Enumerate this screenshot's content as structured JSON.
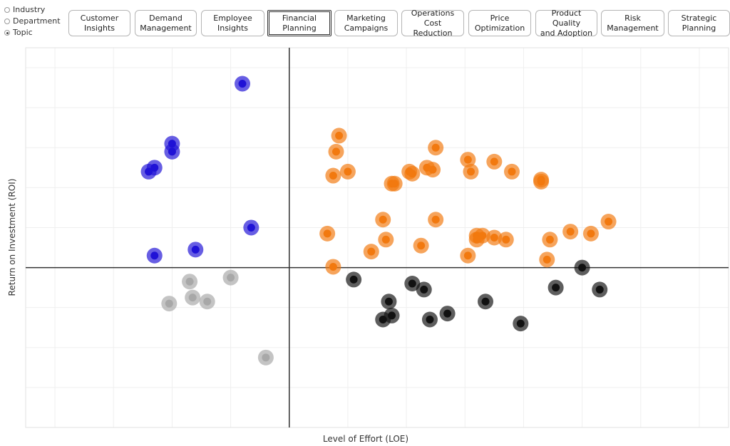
{
  "filter": {
    "options": [
      "Industry",
      "Department",
      "Topic"
    ],
    "selected": "Topic"
  },
  "topics": [
    "Customer\nInsights",
    "Demand\nManagement",
    "Employee\nInsights",
    "Financial\nPlanning",
    "Marketing\nCampaigns",
    "Operations Cost\nReduction",
    "Price\nOptimization",
    "Product Quality\nand Adoption",
    "Risk\nManagement",
    "Strategic\nPlanning"
  ],
  "active_topic": "Financial\nPlanning",
  "colors": {
    "high_roi_low_effort": "#1f12d6",
    "high_roi_high_effort": "#f2790f",
    "low_roi_low_effort": "#a8a8a8",
    "low_roi_high_effort": "#111111"
  },
  "chart_data": {
    "type": "scatter",
    "xlabel": "Level of Effort (LOE)",
    "ylabel": "Return on Investment (ROI)",
    "xlim": [
      -4.5,
      7.5
    ],
    "ylim": [
      -4,
      5.5
    ],
    "grid": true,
    "quadrant_lines": {
      "x": 0,
      "y": 0
    },
    "series": [
      {
        "quadrant": "high_roi_low_effort",
        "points": [
          [
            -0.8,
            4.6
          ],
          [
            -2.0,
            3.1
          ],
          [
            -2.0,
            2.9
          ],
          [
            -2.3,
            2.5
          ],
          [
            -2.4,
            2.4
          ],
          [
            -0.65,
            1.0
          ],
          [
            -1.6,
            0.45
          ],
          [
            -2.3,
            0.3
          ]
        ]
      },
      {
        "quadrant": "high_roi_high_effort",
        "points": [
          [
            0.85,
            3.3
          ],
          [
            0.8,
            2.9
          ],
          [
            1.0,
            2.4
          ],
          [
            0.75,
            2.3
          ],
          [
            1.75,
            2.1
          ],
          [
            1.8,
            2.1
          ],
          [
            2.05,
            2.4
          ],
          [
            2.1,
            2.35
          ],
          [
            2.35,
            2.5
          ],
          [
            2.45,
            2.45
          ],
          [
            2.5,
            3.0
          ],
          [
            3.05,
            2.7
          ],
          [
            3.1,
            2.4
          ],
          [
            3.5,
            2.65
          ],
          [
            3.8,
            2.4
          ],
          [
            4.3,
            2.2
          ],
          [
            4.3,
            2.15
          ],
          [
            1.6,
            1.2
          ],
          [
            2.5,
            1.2
          ],
          [
            0.65,
            0.85
          ],
          [
            1.65,
            0.7
          ],
          [
            2.25,
            0.55
          ],
          [
            1.4,
            0.4
          ],
          [
            3.2,
            0.8
          ],
          [
            3.3,
            0.8
          ],
          [
            3.2,
            0.7
          ],
          [
            3.5,
            0.75
          ],
          [
            3.7,
            0.7
          ],
          [
            4.45,
            0.7
          ],
          [
            4.8,
            0.9
          ],
          [
            5.15,
            0.85
          ],
          [
            5.45,
            1.15
          ],
          [
            3.05,
            0.3
          ],
          [
            4.4,
            0.2
          ],
          [
            0.75,
            0.02
          ]
        ]
      },
      {
        "quadrant": "low_roi_low_effort",
        "points": [
          [
            -1.7,
            -0.35
          ],
          [
            -1.0,
            -0.25
          ],
          [
            -1.65,
            -0.75
          ],
          [
            -1.4,
            -0.85
          ],
          [
            -2.05,
            -0.9
          ],
          [
            -0.4,
            -2.25
          ]
        ]
      },
      {
        "quadrant": "low_roi_high_effort",
        "points": [
          [
            1.1,
            -0.3
          ],
          [
            2.1,
            -0.4
          ],
          [
            2.3,
            -0.55
          ],
          [
            1.7,
            -0.85
          ],
          [
            1.6,
            -1.3
          ],
          [
            1.75,
            -1.2
          ],
          [
            2.4,
            -1.3
          ],
          [
            2.7,
            -1.15
          ],
          [
            3.35,
            -0.85
          ],
          [
            3.95,
            -1.4
          ],
          [
            4.55,
            -0.5
          ],
          [
            5.0,
            0.0
          ],
          [
            5.3,
            -0.55
          ]
        ]
      }
    ]
  }
}
